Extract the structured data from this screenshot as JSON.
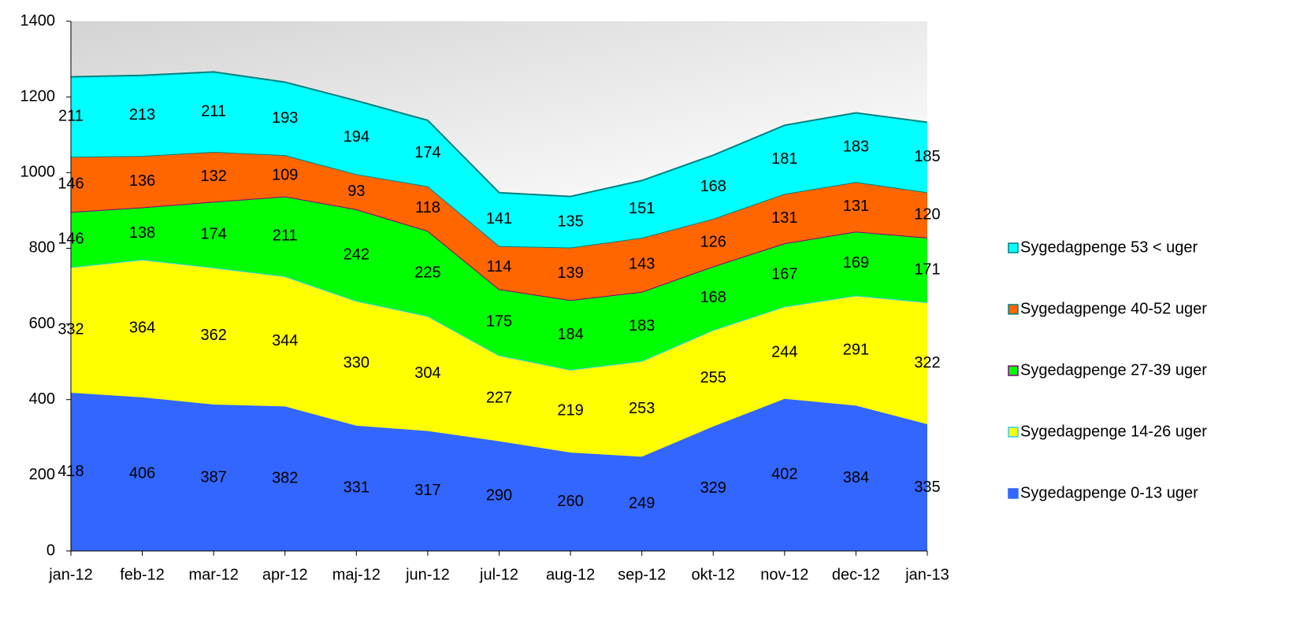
{
  "chart_data": {
    "type": "stacked-area",
    "categories": [
      "jan-12",
      "feb-12",
      "mar-12",
      "apr-12",
      "maj-12",
      "jun-12",
      "jul-12",
      "aug-12",
      "sep-12",
      "okt-12",
      "nov-12",
      "dec-12",
      "jan-13"
    ],
    "series": [
      {
        "name": "Sygedagpenge 0-13 uger",
        "color": "#3366ff",
        "line_color": "#3366ff",
        "values": [
          418,
          406,
          387,
          382,
          331,
          317,
          290,
          260,
          249,
          329,
          402,
          384,
          335
        ]
      },
      {
        "name": "Sygedagpenge 14-26 uger",
        "color": "#ffff00",
        "line_color": "#33ccff",
        "values": [
          332,
          364,
          362,
          344,
          330,
          304,
          227,
          219,
          253,
          255,
          244,
          291,
          322
        ]
      },
      {
        "name": "Sygedagpenge 27-39 uger",
        "color": "#00ff00",
        "line_color": "#800080",
        "values": [
          146,
          138,
          174,
          211,
          242,
          225,
          175,
          184,
          183,
          168,
          167,
          169,
          171
        ]
      },
      {
        "name": "Sygedagpenge 40-52 uger",
        "color": "#ff6600",
        "line_color": "#008080",
        "values": [
          146,
          136,
          132,
          109,
          93,
          118,
          114,
          139,
          143,
          126,
          131,
          131,
          120
        ]
      },
      {
        "name": "Sygedagpenge 53 < uger",
        "color": "#00ffff",
        "line_color": "#008080",
        "values": [
          211,
          213,
          211,
          193,
          194,
          174,
          141,
          135,
          151,
          168,
          181,
          183,
          185
        ]
      }
    ],
    "ylim": [
      0,
      1400
    ],
    "yticks": [
      0,
      200,
      400,
      600,
      800,
      1000,
      1200,
      1400
    ],
    "legend": "right"
  }
}
